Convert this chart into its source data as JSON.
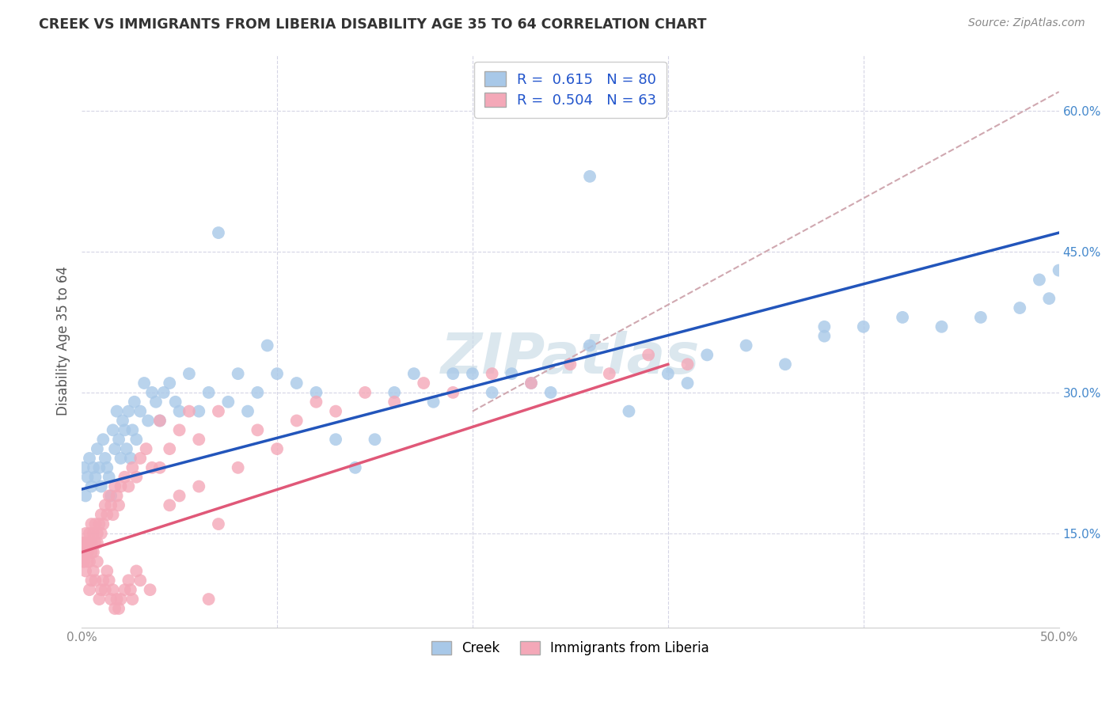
{
  "title": "CREEK VS IMMIGRANTS FROM LIBERIA DISABILITY AGE 35 TO 64 CORRELATION CHART",
  "source": "Source: ZipAtlas.com",
  "ylabel": "Disability Age 35 to 64",
  "xlim": [
    0.0,
    0.5
  ],
  "ylim": [
    0.05,
    0.66
  ],
  "yticks": [
    0.15,
    0.3,
    0.45,
    0.6
  ],
  "ytick_labels": [
    "15.0%",
    "30.0%",
    "45.0%",
    "60.0%"
  ],
  "xticks": [
    0.0,
    0.1,
    0.2,
    0.3,
    0.4,
    0.5
  ],
  "xtick_labels": [
    "0.0%",
    "",
    "",
    "",
    "",
    "50.0%"
  ],
  "creek_color": "#a8c8e8",
  "liberia_color": "#f4a8b8",
  "creek_line_color": "#2255bb",
  "liberia_line_color": "#e05878",
  "dash_line_color": "#d0a8b0",
  "watermark_color": "#ccdde8",
  "background_color": "#ffffff",
  "grid_color": "#d5d5e5",
  "creek_line_x0": 0.0,
  "creek_line_y0": 0.197,
  "creek_line_x1": 0.5,
  "creek_line_y1": 0.47,
  "liberia_line_x0": 0.0,
  "liberia_line_y0": 0.13,
  "liberia_line_x1": 0.3,
  "liberia_line_y1": 0.33,
  "dash_line_x0": 0.2,
  "dash_line_y0": 0.28,
  "dash_line_x1": 0.5,
  "dash_line_y1": 0.62,
  "creek_x": [
    0.001,
    0.002,
    0.003,
    0.004,
    0.005,
    0.006,
    0.007,
    0.008,
    0.009,
    0.01,
    0.011,
    0.012,
    0.013,
    0.014,
    0.015,
    0.016,
    0.017,
    0.018,
    0.019,
    0.02,
    0.021,
    0.022,
    0.023,
    0.024,
    0.025,
    0.026,
    0.027,
    0.028,
    0.03,
    0.032,
    0.034,
    0.036,
    0.038,
    0.04,
    0.042,
    0.045,
    0.048,
    0.05,
    0.055,
    0.06,
    0.065,
    0.07,
    0.075,
    0.08,
    0.085,
    0.09,
    0.095,
    0.1,
    0.11,
    0.12,
    0.13,
    0.14,
    0.15,
    0.16,
    0.17,
    0.18,
    0.19,
    0.2,
    0.21,
    0.22,
    0.23,
    0.24,
    0.26,
    0.28,
    0.3,
    0.31,
    0.32,
    0.34,
    0.36,
    0.38,
    0.4,
    0.42,
    0.44,
    0.46,
    0.48,
    0.49,
    0.495,
    0.5,
    0.38,
    0.26
  ],
  "creek_y": [
    0.22,
    0.19,
    0.21,
    0.23,
    0.2,
    0.22,
    0.21,
    0.24,
    0.22,
    0.2,
    0.25,
    0.23,
    0.22,
    0.21,
    0.19,
    0.26,
    0.24,
    0.28,
    0.25,
    0.23,
    0.27,
    0.26,
    0.24,
    0.28,
    0.23,
    0.26,
    0.29,
    0.25,
    0.28,
    0.31,
    0.27,
    0.3,
    0.29,
    0.27,
    0.3,
    0.31,
    0.29,
    0.28,
    0.32,
    0.28,
    0.3,
    0.47,
    0.29,
    0.32,
    0.28,
    0.3,
    0.35,
    0.32,
    0.31,
    0.3,
    0.25,
    0.22,
    0.25,
    0.3,
    0.32,
    0.29,
    0.32,
    0.32,
    0.3,
    0.32,
    0.31,
    0.3,
    0.35,
    0.28,
    0.32,
    0.31,
    0.34,
    0.35,
    0.33,
    0.36,
    0.37,
    0.38,
    0.37,
    0.38,
    0.39,
    0.42,
    0.4,
    0.43,
    0.37,
    0.53
  ],
  "liberia_x": [
    0.001,
    0.001,
    0.001,
    0.002,
    0.002,
    0.002,
    0.003,
    0.003,
    0.003,
    0.004,
    0.004,
    0.005,
    0.005,
    0.005,
    0.006,
    0.006,
    0.007,
    0.007,
    0.008,
    0.008,
    0.009,
    0.01,
    0.01,
    0.011,
    0.012,
    0.013,
    0.014,
    0.015,
    0.016,
    0.017,
    0.018,
    0.019,
    0.02,
    0.022,
    0.024,
    0.026,
    0.028,
    0.03,
    0.033,
    0.036,
    0.04,
    0.045,
    0.05,
    0.055,
    0.06,
    0.065,
    0.07,
    0.08,
    0.09,
    0.1,
    0.11,
    0.12,
    0.13,
    0.145,
    0.16,
    0.175,
    0.19,
    0.21,
    0.23,
    0.25,
    0.27,
    0.29,
    0.31
  ],
  "liberia_y": [
    0.13,
    0.12,
    0.14,
    0.14,
    0.13,
    0.15,
    0.12,
    0.14,
    0.13,
    0.15,
    0.12,
    0.14,
    0.13,
    0.16,
    0.13,
    0.15,
    0.14,
    0.16,
    0.15,
    0.14,
    0.16,
    0.15,
    0.17,
    0.16,
    0.18,
    0.17,
    0.19,
    0.18,
    0.17,
    0.2,
    0.19,
    0.18,
    0.2,
    0.21,
    0.2,
    0.22,
    0.21,
    0.23,
    0.24,
    0.22,
    0.27,
    0.24,
    0.26,
    0.28,
    0.25,
    0.08,
    0.28,
    0.22,
    0.26,
    0.24,
    0.27,
    0.29,
    0.28,
    0.3,
    0.29,
    0.31,
    0.3,
    0.32,
    0.31,
    0.33,
    0.32,
    0.34,
    0.33
  ],
  "liberia_negative_x": [
    0.001,
    0.002,
    0.003,
    0.004,
    0.005,
    0.006,
    0.007,
    0.008,
    0.009,
    0.01,
    0.011,
    0.012,
    0.013,
    0.014,
    0.015,
    0.016,
    0.017,
    0.018,
    0.019,
    0.02,
    0.022,
    0.024,
    0.025,
    0.026,
    0.028,
    0.03,
    0.035,
    0.04,
    0.045,
    0.05,
    0.06,
    0.07
  ],
  "liberia_negative_y": [
    0.12,
    0.11,
    0.13,
    0.09,
    0.1,
    0.11,
    0.1,
    0.12,
    0.08,
    0.09,
    0.1,
    0.09,
    0.11,
    0.1,
    0.08,
    0.09,
    0.07,
    0.08,
    0.07,
    0.08,
    0.09,
    0.1,
    0.09,
    0.08,
    0.11,
    0.1,
    0.09,
    0.22,
    0.18,
    0.19,
    0.2,
    0.16
  ]
}
